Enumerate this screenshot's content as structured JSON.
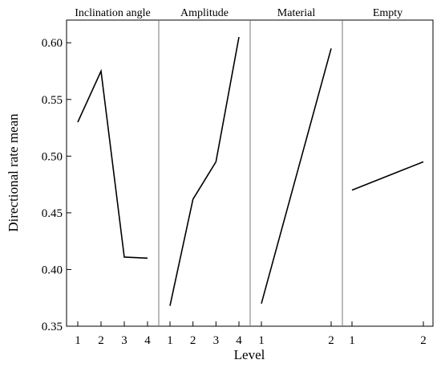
{
  "chart_data": {
    "type": "line",
    "xlabel": "Level",
    "ylabel": "Directional rate mean",
    "ylim": [
      0.35,
      0.62
    ],
    "yticks": [
      0.35,
      0.4,
      0.45,
      0.5,
      0.55,
      0.6
    ],
    "ytick_labels": [
      "0.35",
      "0.40",
      "0.45",
      "0.50",
      "0.55",
      "0.60"
    ],
    "grid": false,
    "line_color": "#000000",
    "panels": [
      {
        "title": "Inclination angle",
        "levels": [
          "1",
          "2",
          "3",
          "4"
        ],
        "values": [
          0.53,
          0.575,
          0.411,
          0.41
        ]
      },
      {
        "title": "Amplitude",
        "levels": [
          "1",
          "2",
          "3",
          "4"
        ],
        "values": [
          0.368,
          0.462,
          0.495,
          0.605
        ]
      },
      {
        "title": "Material",
        "levels": [
          "1",
          "2"
        ],
        "values": [
          0.37,
          0.595
        ]
      },
      {
        "title": "Empty",
        "levels": [
          "1",
          "2"
        ],
        "values": [
          0.47,
          0.495
        ]
      }
    ]
  }
}
